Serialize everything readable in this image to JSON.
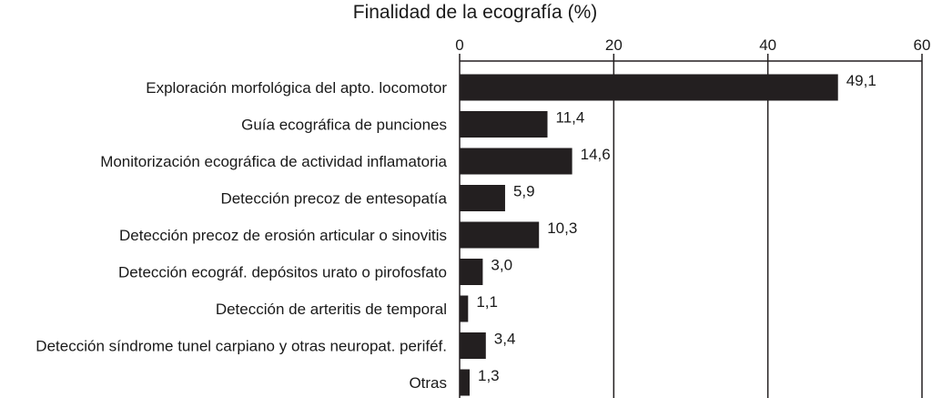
{
  "chart_data": {
    "type": "bar",
    "orientation": "horizontal",
    "title": "Finalidad de la ecografía (%)",
    "xlabel": "",
    "ylabel": "",
    "xlim": [
      0,
      60
    ],
    "ticks": [
      0,
      20,
      40,
      60
    ],
    "tick_labels": [
      "0",
      "20",
      "40",
      "60"
    ],
    "axis_position": "top",
    "grid": true,
    "categories": [
      "Exploración morfológica del apto. locomotor",
      "Guía ecográfica de punciones",
      "Monitorización ecográfica de actividad inflamatoria",
      "Detección precoz de entesopatía",
      "Detección precoz de erosión articular o sinovitis",
      "Detección ecográf. depósitos urato o pirofosfato",
      "Detección de arteritis de temporal",
      "Detección síndrome tunel carpiano y otras neuropat. periféf.",
      "Otras"
    ],
    "values": [
      49.1,
      11.4,
      14.6,
      5.9,
      10.3,
      3.0,
      1.1,
      3.4,
      1.3
    ],
    "value_labels": [
      "49,1",
      "11,4",
      "14,6",
      "5,9",
      "10,3",
      "3,0",
      "1,1",
      "3,4",
      "1,3"
    ],
    "bar_color": "#231f20"
  }
}
